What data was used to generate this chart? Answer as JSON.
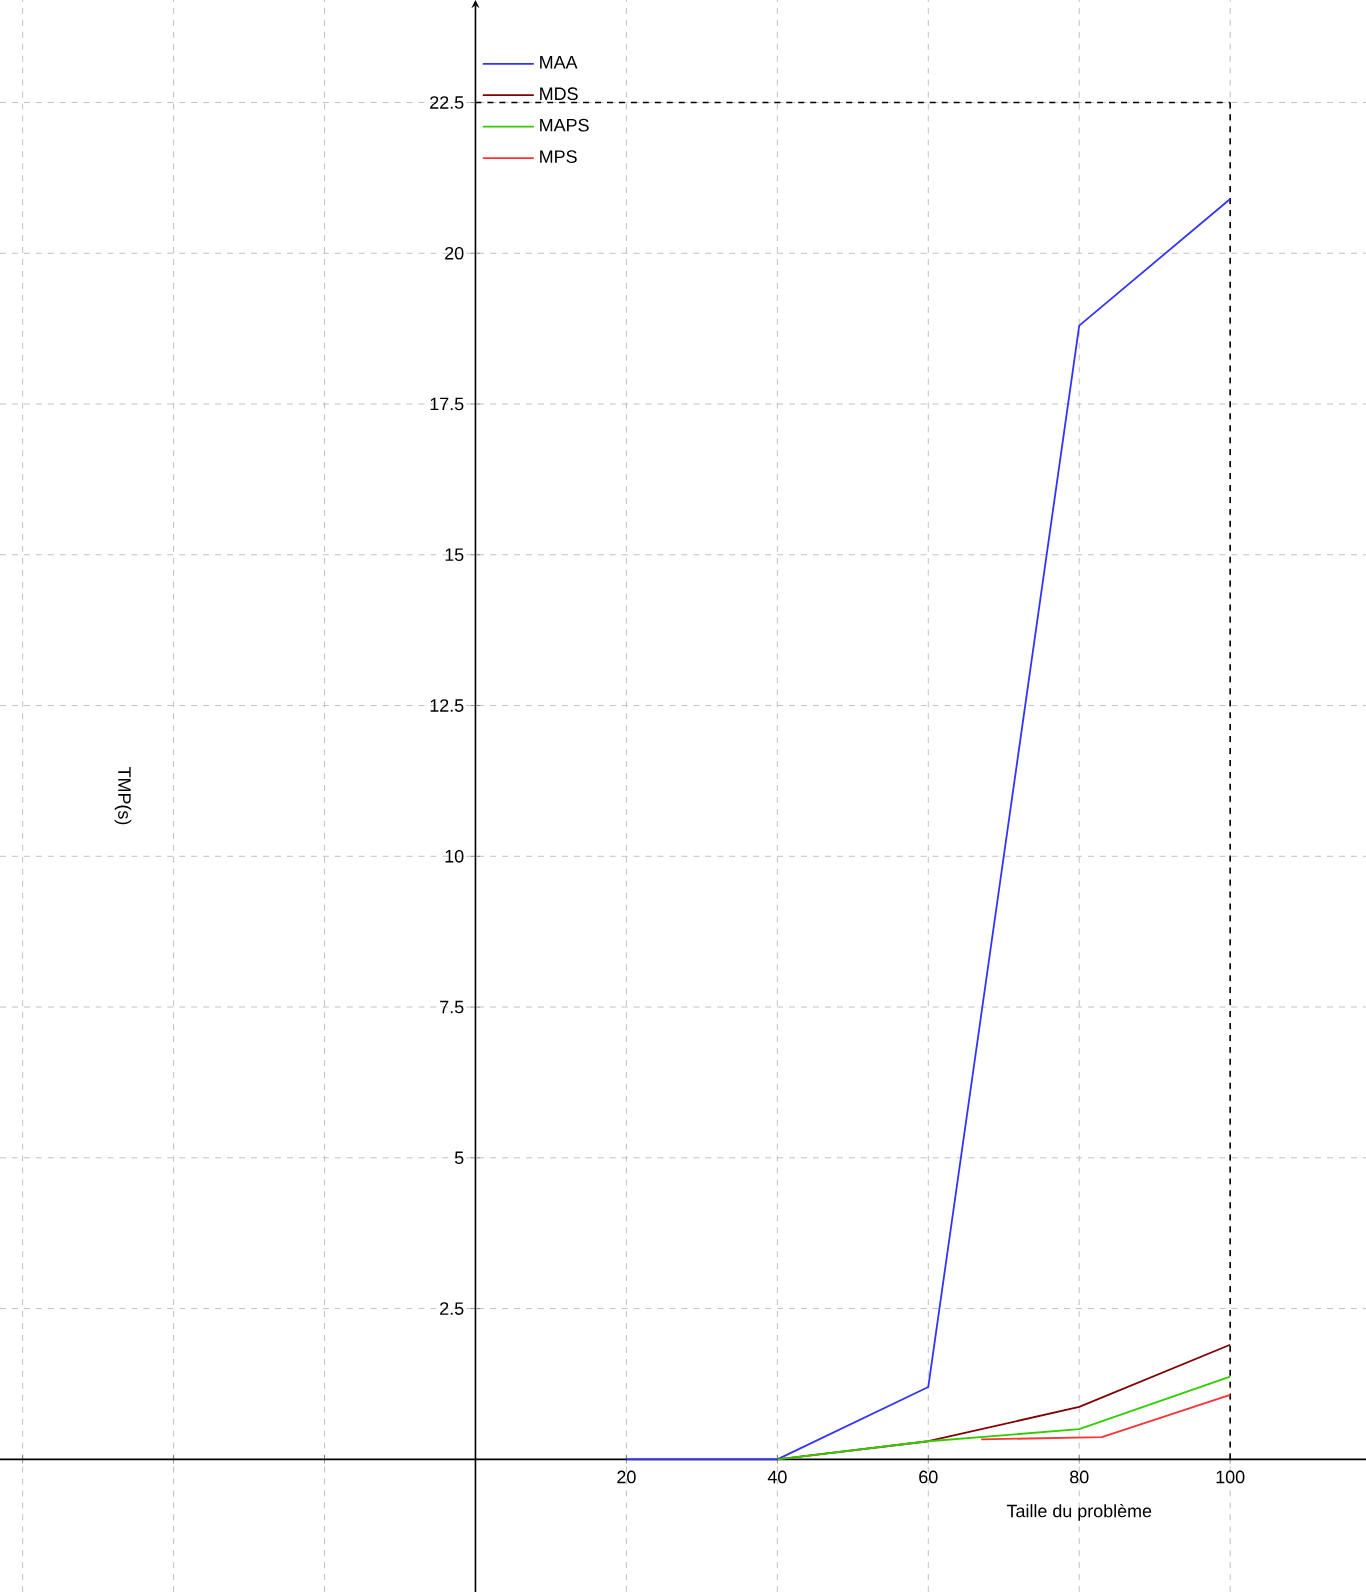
{
  "chart_data": {
    "type": "line",
    "xlabel": "Taille du problème",
    "ylabel": "TMP(s)",
    "xlim": [
      -63,
      118
    ],
    "ylim": [
      -2.2,
      24.2
    ],
    "xticks": [
      {
        "value": -60,
        "label": null
      },
      {
        "value": -40,
        "label": null
      },
      {
        "value": -20,
        "label": null
      },
      20,
      40,
      60,
      80,
      100
    ],
    "yticks": [
      2.5,
      5,
      7.5,
      10,
      12.5,
      15,
      17.5,
      20,
      22.5
    ],
    "grid": true,
    "legend": "top",
    "marker": "none",
    "line_style": "solid",
    "ref_lines": [
      {
        "axis": "y",
        "value": 22.5,
        "color": "#000000",
        "line_style": "dashed"
      },
      {
        "axis": "x",
        "value": 100,
        "color": "#000000",
        "line_style": "dashed"
      }
    ],
    "series": [
      {
        "name": "MAA",
        "color": "#3333ff",
        "x": [
          20,
          40,
          60,
          80,
          100
        ],
        "values": [
          0,
          0,
          1.2,
          18.8,
          20.9
        ]
      },
      {
        "name": "MDS",
        "color": "#800000",
        "x": [
          40,
          60,
          80,
          100
        ],
        "values": [
          0,
          0.3,
          0.87,
          1.9
        ]
      },
      {
        "name": "MAPS",
        "color": "#33cc00",
        "x": [
          40,
          60,
          80,
          100
        ],
        "values": [
          0,
          0.3,
          0.5,
          1.37
        ]
      },
      {
        "name": "MPS",
        "color": "#ff3333",
        "x": [
          67,
          83,
          100
        ],
        "values": [
          0.33,
          0.37,
          1.07
        ]
      }
    ]
  }
}
